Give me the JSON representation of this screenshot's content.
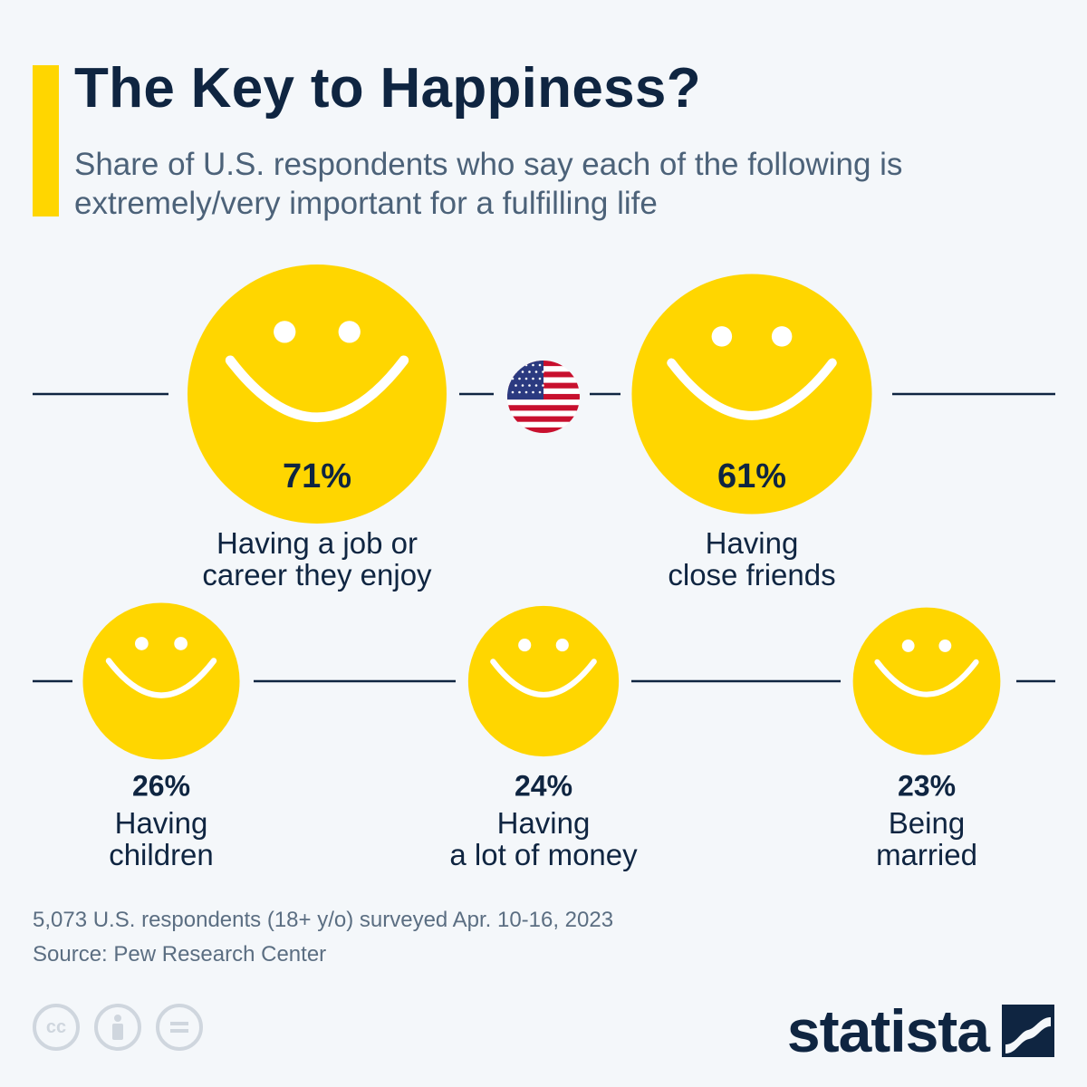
{
  "header": {
    "title": "The Key to Happiness?",
    "subtitle": "Share of U.S. respondents who say each of the following is extremely/very important for a fulfilling life"
  },
  "chart_data": {
    "type": "bubble-icons",
    "unit": "%",
    "categories": [
      "Having a job or career they enjoy",
      "Having close friends",
      "Having children",
      "Having a lot of money",
      "Being married"
    ],
    "values": [
      71,
      61,
      26,
      24,
      23
    ],
    "value_labels": [
      "71%",
      "61%",
      "26%",
      "24%",
      "23%"
    ],
    "label_lines": [
      [
        "Having a job or",
        "career they enjoy"
      ],
      [
        "Having",
        "close friends"
      ],
      [
        "Having",
        "children"
      ],
      [
        "Having",
        "a lot of money"
      ],
      [
        "Being",
        "married"
      ]
    ]
  },
  "footer": {
    "survey_note": "5,073 U.S. respondents (18+ y/o) surveyed Apr. 10-16, 2023",
    "source": "Source: Pew Research Center",
    "license_icons": [
      "cc-icon",
      "attribution-icon",
      "no-derivatives-icon"
    ],
    "brand": "statista"
  },
  "colors": {
    "accent": "#ffd600",
    "title": "#0f2541",
    "subtitle": "#4c6279",
    "face": "#ffd600",
    "line": "#0f2541",
    "background": "#f4f7fa"
  },
  "icons": {
    "flag": "us-flag-icon"
  }
}
